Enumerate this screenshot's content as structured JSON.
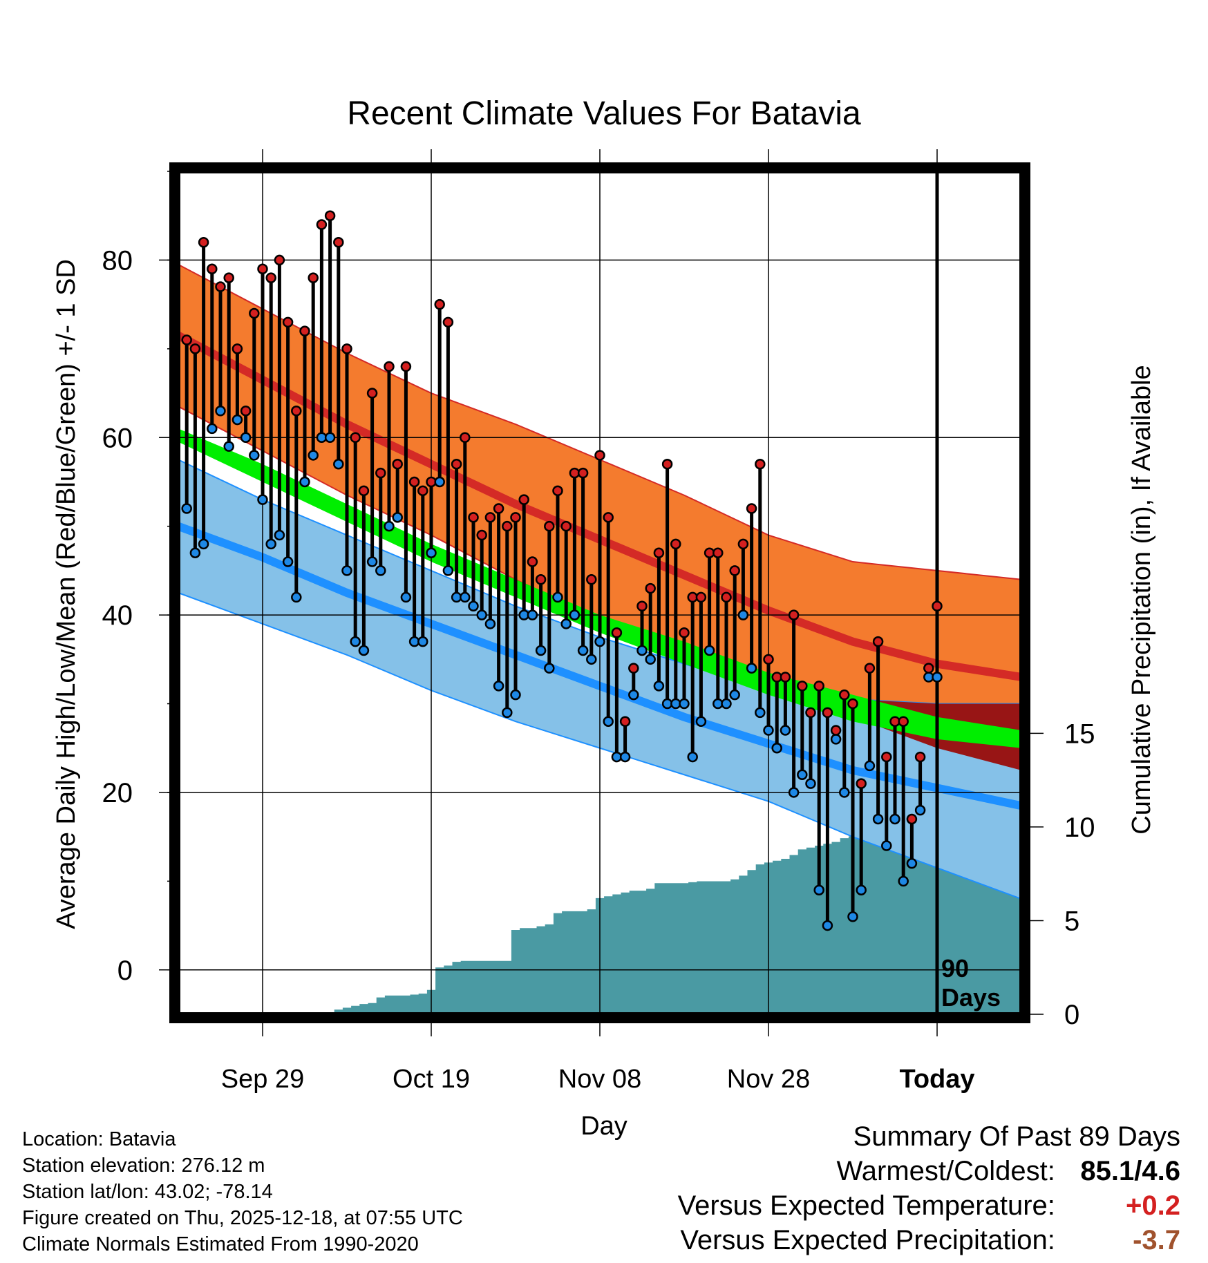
{
  "chart_data": {
    "type": "line",
    "title": "Recent Climate Values For Batavia",
    "xlabel": "Day",
    "ylabel": "Average Daily High/Low/Mean (Red/Blue/Green) +/- 1 SD",
    "y2label": "Cumulative Precipitation (in), If Available",
    "ylim": [
      -5,
      90
    ],
    "y2lim": [
      0,
      45
    ],
    "xlim": [
      0,
      100
    ],
    "x_ticks": [
      {
        "day": 10,
        "label": "Sep 29"
      },
      {
        "day": 30,
        "label": "Oct 19"
      },
      {
        "day": 50,
        "label": "Nov 08"
      },
      {
        "day": 70,
        "label": "Nov 28"
      },
      {
        "day": 90,
        "label": "Today"
      }
    ],
    "y_ticks": [
      0,
      20,
      40,
      60,
      80
    ],
    "y2_ticks": [
      0,
      5,
      10,
      15
    ],
    "today_marker": {
      "day": 90,
      "label_line1": "90",
      "label_line2": "Days"
    },
    "normal_bands": {
      "days": [
        0,
        10,
        20,
        30,
        40,
        50,
        60,
        70,
        80,
        90,
        100
      ],
      "high_upper": [
        79.5,
        74.5,
        69.5,
        65.0,
        61.5,
        57.5,
        53.5,
        49.0,
        46.0,
        45.0,
        44.0
      ],
      "high_mean": [
        71.5,
        66.5,
        61.5,
        57.0,
        52.5,
        48.5,
        44.5,
        40.5,
        37.0,
        34.5,
        33.0
      ],
      "high_lower": [
        63.5,
        58.5,
        53.5,
        49.0,
        44.0,
        39.5,
        36.0,
        32.0,
        28.5,
        25.0,
        22.5
      ],
      "mean_upper": [
        61.0,
        57.0,
        52.5,
        48.0,
        44.0,
        40.0,
        37.0,
        33.5,
        31.0,
        28.5,
        27.0
      ],
      "mean_lower": [
        59.5,
        55.0,
        50.5,
        46.0,
        42.0,
        38.0,
        34.5,
        31.0,
        28.0,
        26.0,
        25.0
      ],
      "low_upper": [
        57.5,
        53.0,
        49.0,
        45.0,
        41.0,
        37.5,
        34.5,
        31.5,
        30.5,
        30.0,
        30.0
      ],
      "low_mean": [
        50.0,
        46.5,
        42.5,
        39.0,
        35.5,
        32.0,
        28.5,
        25.5,
        22.5,
        20.5,
        18.5
      ],
      "low_lower": [
        42.5,
        39.0,
        35.5,
        31.5,
        28.0,
        25.0,
        22.0,
        19.0,
        15.0,
        11.5,
        8.0
      ]
    },
    "series": [
      {
        "name": "Daily High",
        "color": "#d42020",
        "start_day": 1,
        "values": [
          71,
          70,
          82,
          79,
          77,
          78,
          70,
          63,
          74,
          79,
          78,
          80,
          73,
          63,
          72,
          78,
          84,
          85,
          82,
          70,
          60,
          54,
          65,
          56,
          68,
          57,
          68,
          55,
          54,
          55,
          75,
          73,
          57,
          60,
          51,
          49,
          51,
          52,
          50,
          51,
          53,
          46,
          44,
          50,
          54,
          50,
          56,
          56,
          44,
          58,
          51,
          38,
          28,
          34,
          41,
          43,
          47,
          57,
          48,
          38,
          42,
          42,
          47,
          47,
          42,
          45,
          48,
          52,
          57,
          35,
          33,
          33,
          40,
          32,
          29,
          32,
          29,
          27,
          31,
          30,
          21,
          34,
          37,
          24,
          28,
          28,
          17,
          24,
          34,
          41
        ]
      },
      {
        "name": "Daily Low",
        "color": "#1e88e5",
        "start_day": 1,
        "values": [
          52,
          47,
          48,
          61,
          63,
          59,
          62,
          60,
          58,
          53,
          48,
          49,
          46,
          42,
          55,
          58,
          60,
          60,
          57,
          45,
          37,
          36,
          46,
          45,
          50,
          51,
          42,
          37,
          37,
          47,
          55,
          45,
          42,
          42,
          41,
          40,
          39,
          32,
          29,
          31,
          40,
          40,
          36,
          34,
          42,
          39,
          40,
          36,
          35,
          37,
          28,
          24,
          24,
          31,
          36,
          35,
          32,
          30,
          30,
          30,
          24,
          28,
          36,
          30,
          30,
          31,
          40,
          34,
          29,
          27,
          25,
          27,
          20,
          22,
          21,
          9,
          5,
          26,
          20,
          6,
          9,
          23,
          17,
          14,
          17,
          10,
          12,
          18,
          33,
          33
        ]
      },
      {
        "name": "Cumulative Precipitation",
        "color": "#4a9aa3",
        "start_day": 1,
        "values": [
          0,
          0,
          0,
          0,
          0,
          0,
          0,
          0,
          0,
          0,
          0,
          0,
          0,
          0,
          0,
          0,
          0,
          0,
          0.25,
          0.35,
          0.45,
          0.55,
          0.6,
          0.9,
          1.0,
          1.0,
          1.0,
          1.05,
          1.1,
          1.3,
          2.5,
          2.6,
          2.8,
          2.85,
          2.85,
          2.85,
          2.85,
          2.85,
          2.85,
          4.5,
          4.6,
          4.6,
          4.7,
          4.8,
          5.4,
          5.5,
          5.5,
          5.5,
          5.6,
          6.2,
          6.3,
          6.4,
          6.5,
          6.6,
          6.6,
          6.7,
          7.0,
          7.0,
          7.0,
          7.0,
          7.05,
          7.1,
          7.1,
          7.1,
          7.1,
          7.2,
          7.4,
          7.7,
          8.0,
          8.1,
          8.2,
          8.3,
          8.5,
          8.8,
          8.9,
          9.0,
          9.1,
          9.2,
          9.4,
          9.5,
          9.6,
          9.7,
          9.9,
          10.0,
          10.0,
          10.05,
          10.1,
          10.1,
          10.15,
          10.2
        ]
      }
    ],
    "colors": {
      "high_band": "#f47b2e",
      "high_mean": "#d42a26",
      "low_band": "#85c1e8",
      "low_mean": "#1e90ff",
      "mean_band": "#00ee00",
      "overlap_band": "#981515",
      "precip": "#4a9aa3"
    }
  },
  "info": {
    "location": "Location: Batavia",
    "elevation": "Station elevation: 276.12 m",
    "latlon": "Station lat/lon: 43.02; -78.14",
    "created": "Figure created on Thu, 2025-12-18, at 07:55 UTC",
    "normals": "Climate Normals Estimated From 1990-2020"
  },
  "summary": {
    "heading": "Summary Of Past 89 Days",
    "warm_label": "Warmest/Coldest:",
    "warm_value": "85.1/4.6",
    "temp_label": "Versus Expected Temperature:",
    "temp_value": "+0.2",
    "temp_color": "#d42020",
    "precip_label": "Versus Expected Precipitation:",
    "precip_value": "-3.7",
    "precip_color": "#a0522d"
  }
}
